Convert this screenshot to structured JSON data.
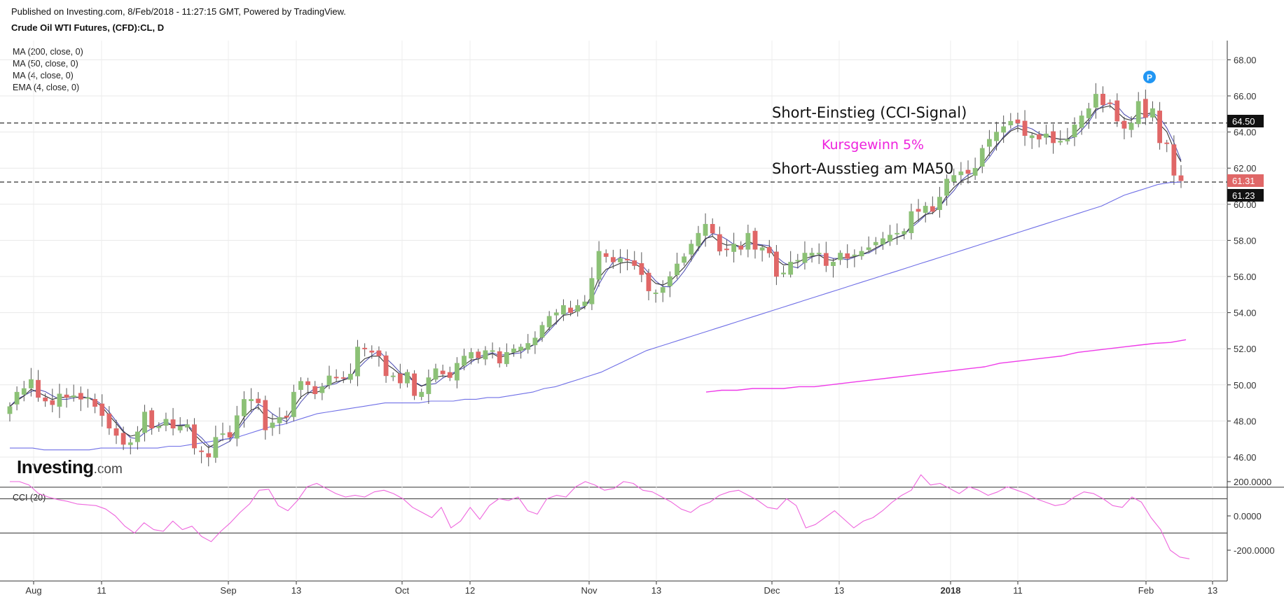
{
  "header": {
    "published": "Published on Investing.com, 8/Feb/2018 - 11:27:15 GMT, Powered by TradingView.",
    "symbol": "Crude Oil WTI Futures, (CFD):CL, D"
  },
  "indicators": [
    "MA (200, close, 0)",
    "MA (50, close, 0)",
    "MA (4, close, 0)",
    "EMA (4, close, 0)"
  ],
  "cci_label": "CCI (20)",
  "logo": {
    "main": "Investing",
    "domain": ".com"
  },
  "markers": {
    "p_badge": "P"
  },
  "annotations": {
    "entry": "Short-Einstieg (CCI-Signal)",
    "gain": "Kursgewinn 5%",
    "exit": "Short-Ausstieg am MA50"
  },
  "price_labels": {
    "entry_level": "64.50",
    "last_price": "61.31",
    "ma50_value": "61.23"
  },
  "colors": {
    "up": "#8cc176",
    "down": "#e06767",
    "ma200": "#ee3be8",
    "ma50": "#6f6fe6",
    "ma4": "#5555b5",
    "ema4": "#333333",
    "cci": "#ee66dd",
    "gain_text": "#ee22dd",
    "p_badge": "#2196f3"
  },
  "chart_data": {
    "type": "candlestick",
    "title": "Crude Oil WTI Futures, (CFD):CL, D",
    "price_axis": {
      "ticks": [
        "46.00",
        "48.00",
        "50.00",
        "52.00",
        "54.00",
        "56.00",
        "58.00",
        "60.00",
        "62.00",
        "64.00",
        "66.00",
        "68.00"
      ],
      "ylim": [
        44.7,
        69.0
      ]
    },
    "x_axis": {
      "ticks": [
        {
          "label": "Aug",
          "bold": false
        },
        {
          "label": "11",
          "bold": false
        },
        {
          "label": "Sep",
          "bold": false
        },
        {
          "label": "13",
          "bold": false
        },
        {
          "label": "Oct",
          "bold": false
        },
        {
          "label": "12",
          "bold": false
        },
        {
          "label": "Nov",
          "bold": false
        },
        {
          "label": "13",
          "bold": false
        },
        {
          "label": "Dec",
          "bold": false
        },
        {
          "label": "13",
          "bold": false
        },
        {
          "label": "2018",
          "bold": true
        },
        {
          "label": "11",
          "bold": false
        },
        {
          "label": "Feb",
          "bold": false
        },
        {
          "label": "13",
          "bold": false
        }
      ]
    },
    "horizontal_lines": [
      64.5,
      61.23
    ],
    "closes": [
      48.8,
      49.6,
      49.8,
      50.3,
      49.3,
      49.1,
      48.9,
      49.5,
      49.3,
      49.4,
      49.2,
      49.3,
      48.8,
      48.3,
      47.6,
      47.2,
      46.7,
      46.8,
      47.4,
      48.5,
      47.6,
      47.7,
      48.1,
      47.6,
      47.7,
      47.8,
      46.5,
      46.3,
      46.0,
      47.1,
      47.3,
      47.1,
      48.3,
      49.2,
      49.2,
      49.0,
      47.5,
      47.9,
      48.2,
      48.2,
      49.6,
      50.2,
      50.0,
      49.5,
      49.9,
      50.5,
      50.4,
      50.4,
      50.6,
      52.1,
      52.0,
      51.8,
      51.6,
      50.5,
      50.5,
      50.1,
      50.7,
      49.4,
      49.6,
      50.4,
      50.9,
      50.6,
      50.4,
      51.2,
      51.6,
      51.8,
      51.5,
      51.9,
      51.9,
      51.2,
      51.8,
      52.0,
      52.1,
      52.3,
      52.6,
      53.3,
      53.8,
      54.0,
      54.4,
      54.0,
      54.4,
      54.6,
      55.9,
      57.4,
      57.1,
      56.8,
      57.0,
      56.9,
      56.6,
      56.1,
      55.2,
      55.1,
      55.4,
      56.0,
      56.7,
      57.1,
      57.8,
      58.4,
      58.9,
      58.4,
      57.4,
      57.5,
      57.8,
      57.5,
      58.4,
      57.5,
      57.6,
      57.3,
      56.0,
      56.2,
      56.8,
      56.9,
      57.3,
      57.3,
      57.3,
      56.6,
      56.8,
      57.3,
      57.0,
      57.2,
      57.4,
      57.6,
      57.9,
      58.1,
      58.3,
      58.4,
      58.5,
      59.6,
      59.6,
      59.9,
      59.6,
      60.4,
      61.4,
      61.6,
      61.8,
      61.7,
      62.0,
      63.1,
      63.6,
      64.0,
      64.3,
      64.6,
      64.5,
      63.8,
      63.8,
      63.6,
      63.9,
      63.4,
      63.5,
      63.6,
      64.4,
      64.9,
      65.3,
      66.1,
      65.5,
      65.6,
      64.6,
      64.2,
      64.5,
      65.7,
      64.8,
      65.3,
      63.4,
      63.4,
      61.6,
      61.3
    ],
    "ma50": [
      46.5,
      46.5,
      46.5,
      46.4,
      46.4,
      46.4,
      46.4,
      46.4,
      46.5,
      46.5,
      46.5,
      46.5,
      46.5,
      46.5,
      46.6,
      46.6,
      46.7,
      46.8,
      46.9,
      47.0,
      47.1,
      47.3,
      47.5,
      47.7,
      47.8,
      48.0,
      48.2,
      48.4,
      48.5,
      48.6,
      48.7,
      48.8,
      48.9,
      49.0,
      49.0,
      49.0,
      49.0,
      49.1,
      49.1,
      49.1,
      49.2,
      49.2,
      49.3,
      49.3,
      49.4,
      49.5,
      49.6,
      49.8,
      49.9,
      50.1,
      50.3,
      50.5,
      50.7,
      51.0,
      51.3,
      51.6,
      51.9,
      52.1,
      52.3,
      52.5,
      52.7,
      52.9,
      53.1,
      53.3,
      53.5,
      53.7,
      53.9,
      54.1,
      54.3,
      54.5,
      54.7,
      54.9,
      55.1,
      55.3,
      55.5,
      55.7,
      55.9,
      56.1,
      56.3,
      56.5,
      56.7,
      56.9,
      57.1,
      57.3,
      57.5,
      57.7,
      57.9,
      58.1,
      58.3,
      58.5,
      58.7,
      58.9,
      59.1,
      59.3,
      59.5,
      59.7,
      59.9,
      60.2,
      60.5,
      60.7,
      60.9,
      61.1,
      61.2,
      61.23
    ],
    "ma200": [
      49.6,
      49.7,
      49.7,
      49.8,
      49.8,
      49.8,
      49.9,
      49.9,
      50.0,
      50.1,
      50.2,
      50.3,
      50.4,
      50.5,
      50.6,
      50.7,
      50.8,
      50.9,
      51.0,
      51.2,
      51.3,
      51.4,
      51.5,
      51.6,
      51.8,
      51.9,
      52.0,
      52.1,
      52.2,
      52.3,
      52.35,
      52.5
    ],
    "cci": [
      200,
      200,
      180,
      130,
      110,
      95,
      85,
      70,
      65,
      60,
      40,
      0,
      -60,
      -100,
      -40,
      -80,
      -90,
      -30,
      -80,
      -60,
      -120,
      -150,
      -90,
      -40,
      20,
      70,
      150,
      155,
      60,
      30,
      90,
      170,
      190,
      160,
      130,
      110,
      120,
      110,
      140,
      150,
      130,
      100,
      50,
      20,
      -10,
      50,
      -70,
      -30,
      50,
      -20,
      60,
      100,
      90,
      110,
      30,
      10,
      100,
      120,
      110,
      170,
      200,
      180,
      150,
      160,
      200,
      190,
      150,
      140,
      110,
      80,
      40,
      20,
      60,
      80,
      120,
      140,
      150,
      120,
      90,
      50,
      40,
      100,
      60,
      -70,
      -50,
      -10,
      30,
      -20,
      -70,
      -30,
      -10,
      30,
      80,
      120,
      150,
      240,
      180,
      190,
      160,
      130,
      170,
      150,
      120,
      140,
      170,
      150,
      130,
      100,
      80,
      60,
      70,
      110,
      140,
      130,
      100,
      60,
      50,
      110,
      80,
      -10,
      -80,
      -200,
      -240,
      -250
    ],
    "cci_axis": {
      "ticks": [
        "200.0000",
        "0.0000",
        "-200.0000"
      ],
      "ylim": [
        -260,
        260
      ],
      "levels": [
        100,
        -100
      ]
    }
  }
}
